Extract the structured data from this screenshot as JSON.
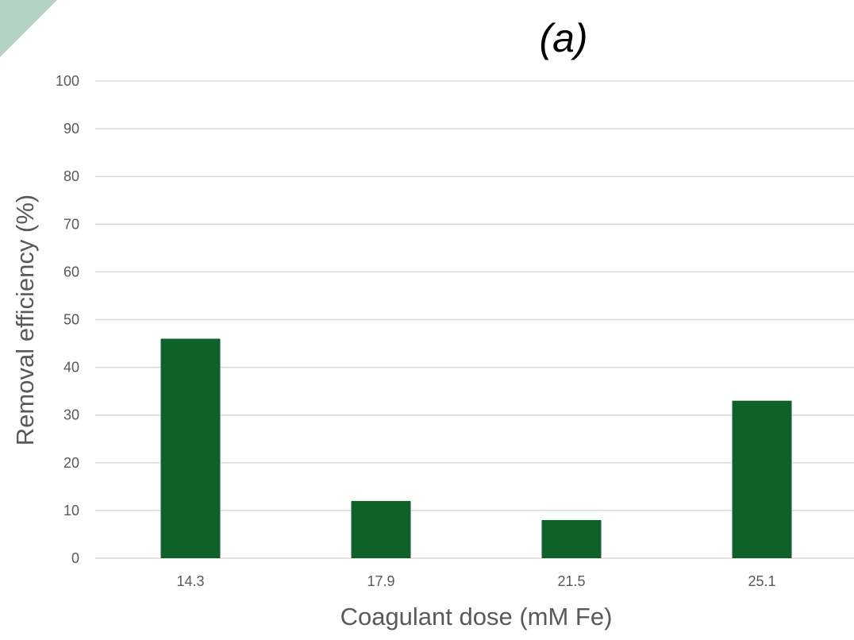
{
  "chart_data": {
    "type": "bar",
    "title": "(a)",
    "xlabel": "Coagulant dose (mM Fe)",
    "ylabel": "Removal efficiency (%)",
    "categories": [
      "14.3",
      "17.9",
      "21.5",
      "25.1"
    ],
    "values": [
      46,
      12,
      8,
      33
    ],
    "ylim": [
      0,
      100
    ],
    "yticks": [
      0,
      10,
      20,
      30,
      40,
      50,
      60,
      70,
      80,
      90,
      100
    ],
    "grid": true,
    "legend": "none",
    "colors": {
      "bar": "#0e6128",
      "grid": "#d9d9d9",
      "tick_text": "#595959",
      "corner_decoration": "#b5d3c2"
    }
  }
}
